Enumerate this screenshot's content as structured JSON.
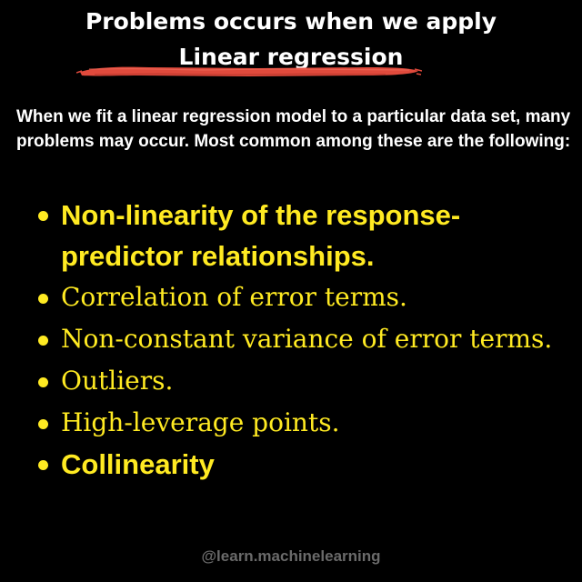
{
  "title": {
    "line1": "Problems occurs when we apply",
    "line2": "Linear regression"
  },
  "intro": "When we fit a linear regression model to a particular data set, many problems may occur. Most common among these are the following:",
  "bullets": [
    {
      "text": "Non-linearity of the response-predictor relationships."
    },
    {
      "text": "Correlation of error terms."
    },
    {
      "text": "Non-constant variance of error terms."
    },
    {
      "text": "Outliers."
    },
    {
      "text": "High-leverage points."
    },
    {
      "text": "Collinearity"
    }
  ],
  "watermark": "@learn.machinelearning",
  "colors": {
    "background": "#000000",
    "title": "#ffffff",
    "accent_underline": "#e04a3c",
    "bullet_text": "#ffea22",
    "watermark": "#6a6a6a"
  }
}
